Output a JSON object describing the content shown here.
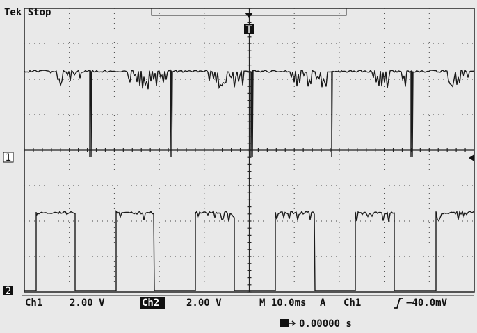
{
  "status": "Tek Stop",
  "markers": {
    "ch1": "1",
    "ch2": "2",
    "trigger": "T"
  },
  "readout": {
    "ch1_label": "Ch1",
    "ch1_scale": "2.00 V",
    "ch2_label": "Ch2",
    "ch2_scale": "2.00 V",
    "timebase": "M 10.0ms",
    "trigger_mode": "A",
    "trigger_source": "Ch1",
    "trigger_level": "−40.0mV",
    "trigger_position": "0.00000 s"
  }
}
